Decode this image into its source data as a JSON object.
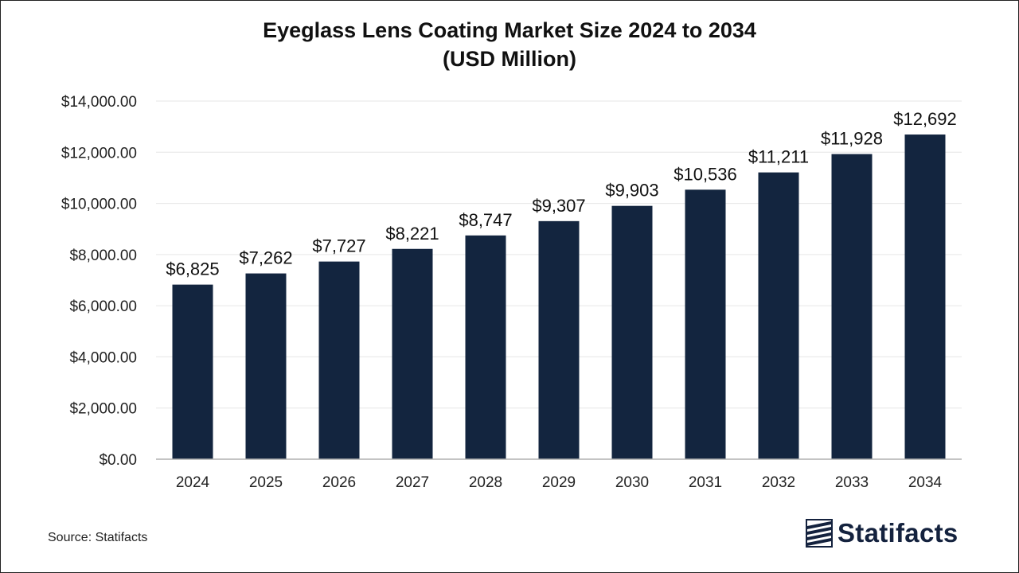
{
  "title": {
    "line1": "Eyeglass Lens Coating Market Size 2024 to 2034",
    "line2": "(USD Million)"
  },
  "source": "Source: Statifacts",
  "logo": {
    "icon": "statifacts-logo-icon",
    "text": "Statifacts"
  },
  "colors": {
    "bar": "#13253f",
    "grid": "#e6e6e6",
    "axis": "#b0b0b0",
    "text": "#222222"
  },
  "chart_data": {
    "type": "bar",
    "categories": [
      "2024",
      "2025",
      "2026",
      "2027",
      "2028",
      "2029",
      "2030",
      "2031",
      "2032",
      "2033",
      "2034"
    ],
    "values": [
      6825,
      7262,
      7727,
      8221,
      8747,
      9307,
      9903,
      10536,
      11211,
      11928,
      12692
    ],
    "value_labels": [
      "$6,825",
      "$7,262",
      "$7,727",
      "$8,221",
      "$8,747",
      "$9,307",
      "$9,903",
      "$10,536",
      "$11,211",
      "$11,928",
      "$12,692"
    ],
    "yticks": [
      0,
      2000,
      4000,
      6000,
      8000,
      10000,
      12000,
      14000
    ],
    "ytick_labels": [
      "$0.00",
      "$2,000.00",
      "$4,000.00",
      "$6,000.00",
      "$8,000.00",
      "$10,000.00",
      "$12,000.00",
      "$14,000.00"
    ],
    "ylim": [
      0,
      14000
    ],
    "xlabel": "",
    "ylabel": "",
    "grid": true,
    "legend": "none"
  }
}
